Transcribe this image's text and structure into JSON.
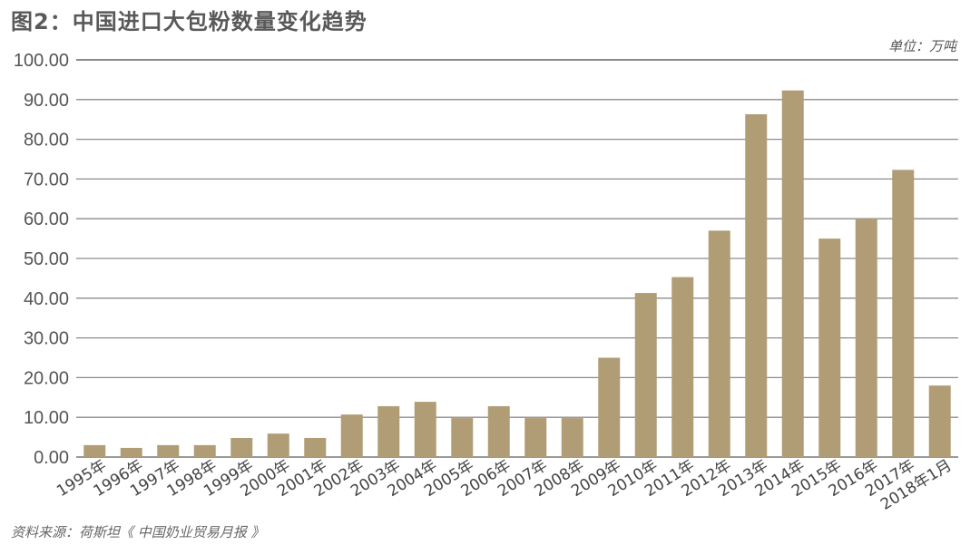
{
  "title": "图2：中国进口大包粉数量变化趋势",
  "unit_label": "单位：万吨",
  "source": "资料来源：荷斯坦《 中国奶业贸易月报 》",
  "colors": {
    "bar": "#b09d76",
    "grid": "#8c8c8c",
    "top_grid": "#444444",
    "axis": "#9a9a9a"
  },
  "chart_data": {
    "type": "bar",
    "title": "图2：中国进口大包粉数量变化趋势",
    "xlabel": "",
    "ylabel": "单位：万吨",
    "ylim": [
      0,
      100
    ],
    "yticks": [
      "0.00",
      "10.00",
      "20.00",
      "30.00",
      "40.00",
      "50.00",
      "60.00",
      "70.00",
      "80.00",
      "90.00",
      "100.00"
    ],
    "grid": true,
    "legend": null,
    "categories": [
      "1995年",
      "1996年",
      "1997年",
      "1998年",
      "1999年",
      "2000年",
      "2001年",
      "2002年",
      "2003年",
      "2004年",
      "2005年",
      "2006年",
      "2007年",
      "2008年",
      "2009年",
      "2010年",
      "2011年",
      "2012年",
      "2013年",
      "2014年",
      "2015年",
      "2016年",
      "2017年",
      "2018年1月"
    ],
    "values": [
      3.0,
      2.3,
      3.0,
      3.0,
      4.8,
      5.9,
      4.8,
      10.7,
      12.8,
      13.9,
      9.8,
      12.8,
      9.8,
      9.8,
      25.0,
      41.3,
      45.3,
      57.0,
      86.3,
      92.3,
      55.0,
      60.0,
      72.3,
      18.0
    ],
    "annotations": [
      "资料来源：荷斯坦《 中国奶业贸易月报 》"
    ]
  }
}
